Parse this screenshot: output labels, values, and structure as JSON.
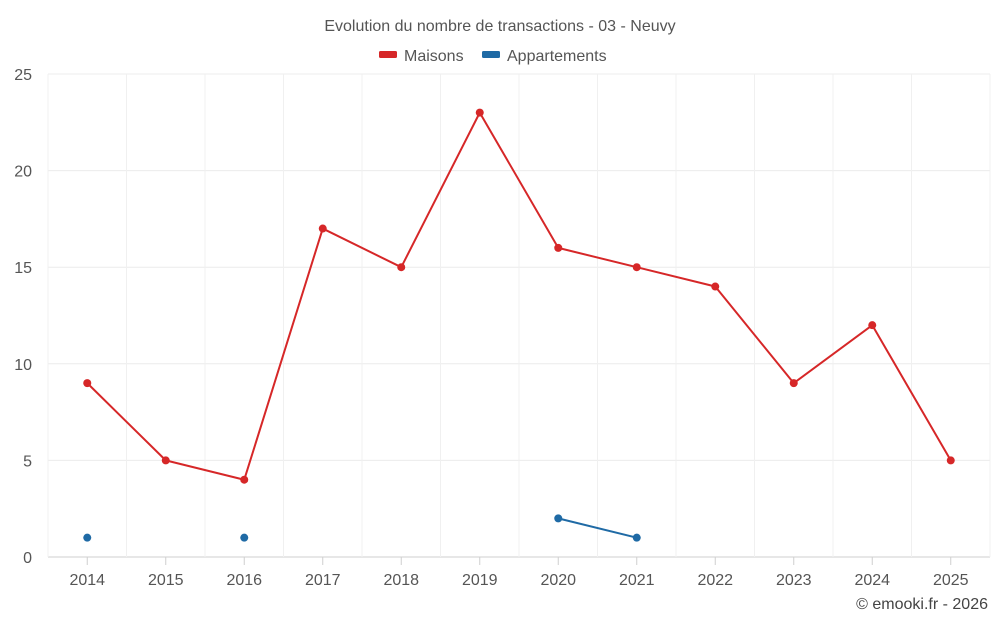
{
  "chart_data": {
    "type": "line",
    "title": "Evolution du nombre de transactions - 03 - Neuvy",
    "categories": [
      "2014",
      "2015",
      "2016",
      "2017",
      "2018",
      "2019",
      "2020",
      "2021",
      "2022",
      "2023",
      "2024",
      "2025"
    ],
    "series": [
      {
        "name": "Maisons",
        "color": "#d62728",
        "values": [
          9,
          5,
          4,
          17,
          15,
          23,
          16,
          15,
          14,
          9,
          12,
          5
        ]
      },
      {
        "name": "Appartements",
        "color": "#1f6aa5",
        "values": [
          1,
          null,
          1,
          null,
          null,
          null,
          2,
          1,
          null,
          null,
          null,
          null
        ]
      }
    ],
    "ylim": [
      0,
      25
    ],
    "yticks": [
      "0",
      "5",
      "10",
      "15",
      "20",
      "25"
    ],
    "xlabel": "",
    "ylabel": "",
    "grid": true,
    "legend": "top-center"
  },
  "credit": "© emooki.fr - 2026"
}
